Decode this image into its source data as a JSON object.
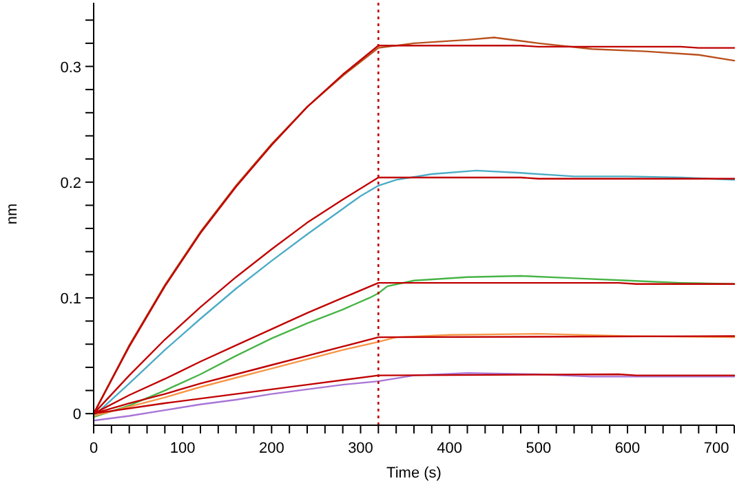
{
  "chart_data": {
    "type": "line",
    "xlabel": "Time (s)",
    "ylabel": "nm",
    "xlim": [
      0,
      720
    ],
    "ylim": [
      -0.01,
      0.355
    ],
    "xticks": [
      0,
      {
        "value": 20,
        "label": null
      },
      {
        "value": 40,
        "label": null
      },
      {
        "value": 60,
        "label": null
      },
      {
        "value": 80,
        "label": null
      },
      100,
      {
        "value": 120,
        "label": null
      },
      {
        "value": 140,
        "label": null
      },
      {
        "value": 160,
        "label": null
      },
      {
        "value": 180,
        "label": null
      },
      200,
      {
        "value": 220,
        "label": null
      },
      {
        "value": 240,
        "label": null
      },
      {
        "value": 260,
        "label": null
      },
      {
        "value": 280,
        "label": null
      },
      300,
      {
        "value": 320,
        "label": null
      },
      {
        "value": 340,
        "label": null
      },
      {
        "value": 360,
        "label": null
      },
      {
        "value": 380,
        "label": null
      },
      400,
      {
        "value": 420,
        "label": null
      },
      {
        "value": 440,
        "label": null
      },
      {
        "value": 460,
        "label": null
      },
      {
        "value": 480,
        "label": null
      },
      500,
      {
        "value": 520,
        "label": null
      },
      {
        "value": 540,
        "label": null
      },
      {
        "value": 560,
        "label": null
      },
      {
        "value": 580,
        "label": null
      },
      600,
      {
        "value": 620,
        "label": null
      },
      {
        "value": 640,
        "label": null
      },
      {
        "value": 660,
        "label": null
      },
      {
        "value": 680,
        "label": null
      },
      700,
      {
        "value": 720,
        "label": null
      }
    ],
    "yticks": [
      0,
      {
        "value": 0.02,
        "label": null
      },
      {
        "value": 0.04,
        "label": null
      },
      {
        "value": 0.06,
        "label": null
      },
      {
        "value": 0.08,
        "label": null
      },
      0.1,
      {
        "value": 0.12,
        "label": null
      },
      {
        "value": 0.14,
        "label": null
      },
      {
        "value": 0.16,
        "label": null
      },
      {
        "value": 0.18,
        "label": null
      },
      0.2,
      {
        "value": 0.22,
        "label": null
      },
      {
        "value": 0.24,
        "label": null
      },
      {
        "value": 0.26,
        "label": null
      },
      {
        "value": 0.28,
        "label": null
      },
      0.3,
      {
        "value": 0.32,
        "label": null
      },
      {
        "value": 0.34,
        "label": null
      }
    ],
    "grid": false,
    "marker": "none",
    "line_style": "solid",
    "ref_lines": [
      {
        "axis": "x",
        "value": 320,
        "label": null,
        "color": "#c00000",
        "line_style": "dotted"
      }
    ],
    "series": [
      {
        "color": "#b9501c",
        "x": [
          0,
          40,
          80,
          120,
          160,
          200,
          240,
          280,
          320,
          360,
          420,
          450,
          500,
          560,
          620,
          680,
          720
        ],
        "values": [
          0,
          0.059,
          0.111,
          0.157,
          0.197,
          0.233,
          0.265,
          0.292,
          0.316,
          0.32,
          0.323,
          0.325,
          0.32,
          0.315,
          0.313,
          0.31,
          0.305
        ]
      },
      {
        "color": "#4bacc6",
        "x": [
          0,
          40,
          80,
          120,
          160,
          200,
          240,
          280,
          300,
          320,
          340,
          380,
          430,
          480,
          540,
          600,
          660,
          720
        ],
        "values": [
          -0.002,
          0.026,
          0.055,
          0.082,
          0.108,
          0.132,
          0.155,
          0.177,
          0.188,
          0.197,
          0.202,
          0.207,
          0.21,
          0.208,
          0.205,
          0.205,
          0.204,
          0.202
        ]
      },
      {
        "color": "#46b446",
        "x": [
          0,
          40,
          80,
          120,
          160,
          200,
          240,
          280,
          310,
          320,
          330,
          360,
          420,
          480,
          540,
          600,
          660,
          720
        ],
        "values": [
          -0.003,
          0.007,
          0.02,
          0.034,
          0.05,
          0.065,
          0.078,
          0.09,
          0.1,
          0.104,
          0.11,
          0.115,
          0.118,
          0.119,
          0.117,
          0.115,
          0.113,
          0.112
        ]
      },
      {
        "color": "#f79646",
        "x": [
          0,
          40,
          80,
          120,
          160,
          200,
          240,
          280,
          320,
          340,
          400,
          500,
          600,
          720
        ],
        "values": [
          -0.002,
          0.006,
          0.014,
          0.023,
          0.031,
          0.039,
          0.047,
          0.055,
          0.062,
          0.066,
          0.068,
          0.069,
          0.067,
          0.066
        ]
      },
      {
        "color": "#a875d6",
        "x": [
          0,
          40,
          80,
          120,
          160,
          200,
          240,
          280,
          320,
          360,
          420,
          500,
          560,
          620,
          720
        ],
        "values": [
          -0.006,
          -0.002,
          0.003,
          0.008,
          0.012,
          0.017,
          0.021,
          0.025,
          0.028,
          0.033,
          0.035,
          0.034,
          0.032,
          0.032,
          0.032
        ]
      },
      {
        "color": "#c00000",
        "x": [
          0,
          40,
          80,
          120,
          160,
          200,
          240,
          280,
          320,
          480,
          500,
          660,
          680,
          720
        ],
        "values": [
          0,
          0.058,
          0.11,
          0.156,
          0.196,
          0.232,
          0.265,
          0.293,
          0.318,
          0.318,
          0.317,
          0.317,
          0.316,
          0.316
        ]
      },
      {
        "color": "#c00000",
        "x": [
          0,
          40,
          80,
          120,
          160,
          200,
          240,
          280,
          320,
          480,
          500,
          720
        ],
        "values": [
          0,
          0.033,
          0.064,
          0.092,
          0.118,
          0.142,
          0.165,
          0.185,
          0.204,
          0.204,
          0.203,
          0.203
        ]
      },
      {
        "color": "#c00000",
        "x": [
          0,
          40,
          80,
          120,
          160,
          200,
          240,
          280,
          320,
          590,
          610,
          720
        ],
        "values": [
          0,
          0.016,
          0.03,
          0.045,
          0.059,
          0.073,
          0.087,
          0.1,
          0.113,
          0.113,
          0.112,
          0.112
        ]
      },
      {
        "color": "#c00000",
        "x": [
          0,
          40,
          80,
          120,
          160,
          200,
          240,
          280,
          320,
          720
        ],
        "values": [
          0,
          0.009,
          0.017,
          0.026,
          0.034,
          0.042,
          0.05,
          0.058,
          0.066,
          0.067
        ]
      },
      {
        "color": "#c00000",
        "x": [
          0,
          80,
          160,
          240,
          320,
          590,
          610,
          720
        ],
        "values": [
          0,
          0.009,
          0.017,
          0.025,
          0.033,
          0.034,
          0.033,
          0.033
        ]
      }
    ]
  }
}
